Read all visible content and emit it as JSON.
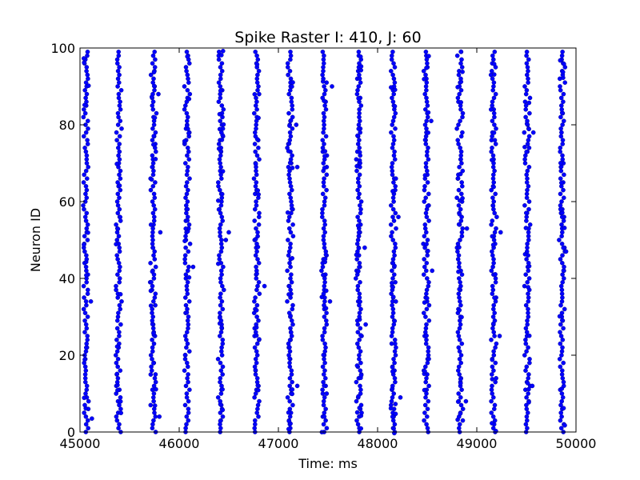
{
  "chart_data": {
    "type": "scatter",
    "title": "Spike Raster I: 410, J: 60",
    "xlabel": "Time: ms",
    "ylabel": "Neuron ID",
    "xlim": [
      45000,
      50000
    ],
    "ylim": [
      0,
      100
    ],
    "xticks": [
      "45000",
      "46000",
      "47000",
      "48000",
      "49000",
      "50000"
    ],
    "yticks": [
      "0",
      "20",
      "40",
      "60",
      "80",
      "100"
    ],
    "grid": false,
    "marker_color": "#0000ff",
    "neuron_id_range": [
      0,
      99
    ],
    "burst_times_ms": [
      45060,
      45390,
      45740,
      46080,
      46420,
      46780,
      47120,
      47460,
      47810,
      48160,
      48490,
      48830,
      49170,
      49510,
      49860
    ],
    "burst_spread_ms": 60,
    "stray_spikes": [
      {
        "x": 45120,
        "y": 3.5
      },
      {
        "x": 45110,
        "y": 34
      },
      {
        "x": 45790,
        "y": 88
      },
      {
        "x": 45810,
        "y": 52
      },
      {
        "x": 45800,
        "y": 4
      },
      {
        "x": 46140,
        "y": 43
      },
      {
        "x": 46470,
        "y": 50
      },
      {
        "x": 46500,
        "y": 52
      },
      {
        "x": 46860,
        "y": 38
      },
      {
        "x": 47190,
        "y": 69
      },
      {
        "x": 47180,
        "y": 80
      },
      {
        "x": 47190,
        "y": 12
      },
      {
        "x": 47520,
        "y": 34
      },
      {
        "x": 47540,
        "y": 90
      },
      {
        "x": 47870,
        "y": 48
      },
      {
        "x": 47880,
        "y": 28
      },
      {
        "x": 48230,
        "y": 9
      },
      {
        "x": 48210,
        "y": 56
      },
      {
        "x": 48550,
        "y": 42
      },
      {
        "x": 48540,
        "y": 81
      },
      {
        "x": 48900,
        "y": 53
      },
      {
        "x": 48890,
        "y": 8
      },
      {
        "x": 49230,
        "y": 25
      },
      {
        "x": 49240,
        "y": 52
      },
      {
        "x": 49570,
        "y": 78
      },
      {
        "x": 49560,
        "y": 12
      },
      {
        "x": 49900,
        "y": 47
      }
    ]
  }
}
